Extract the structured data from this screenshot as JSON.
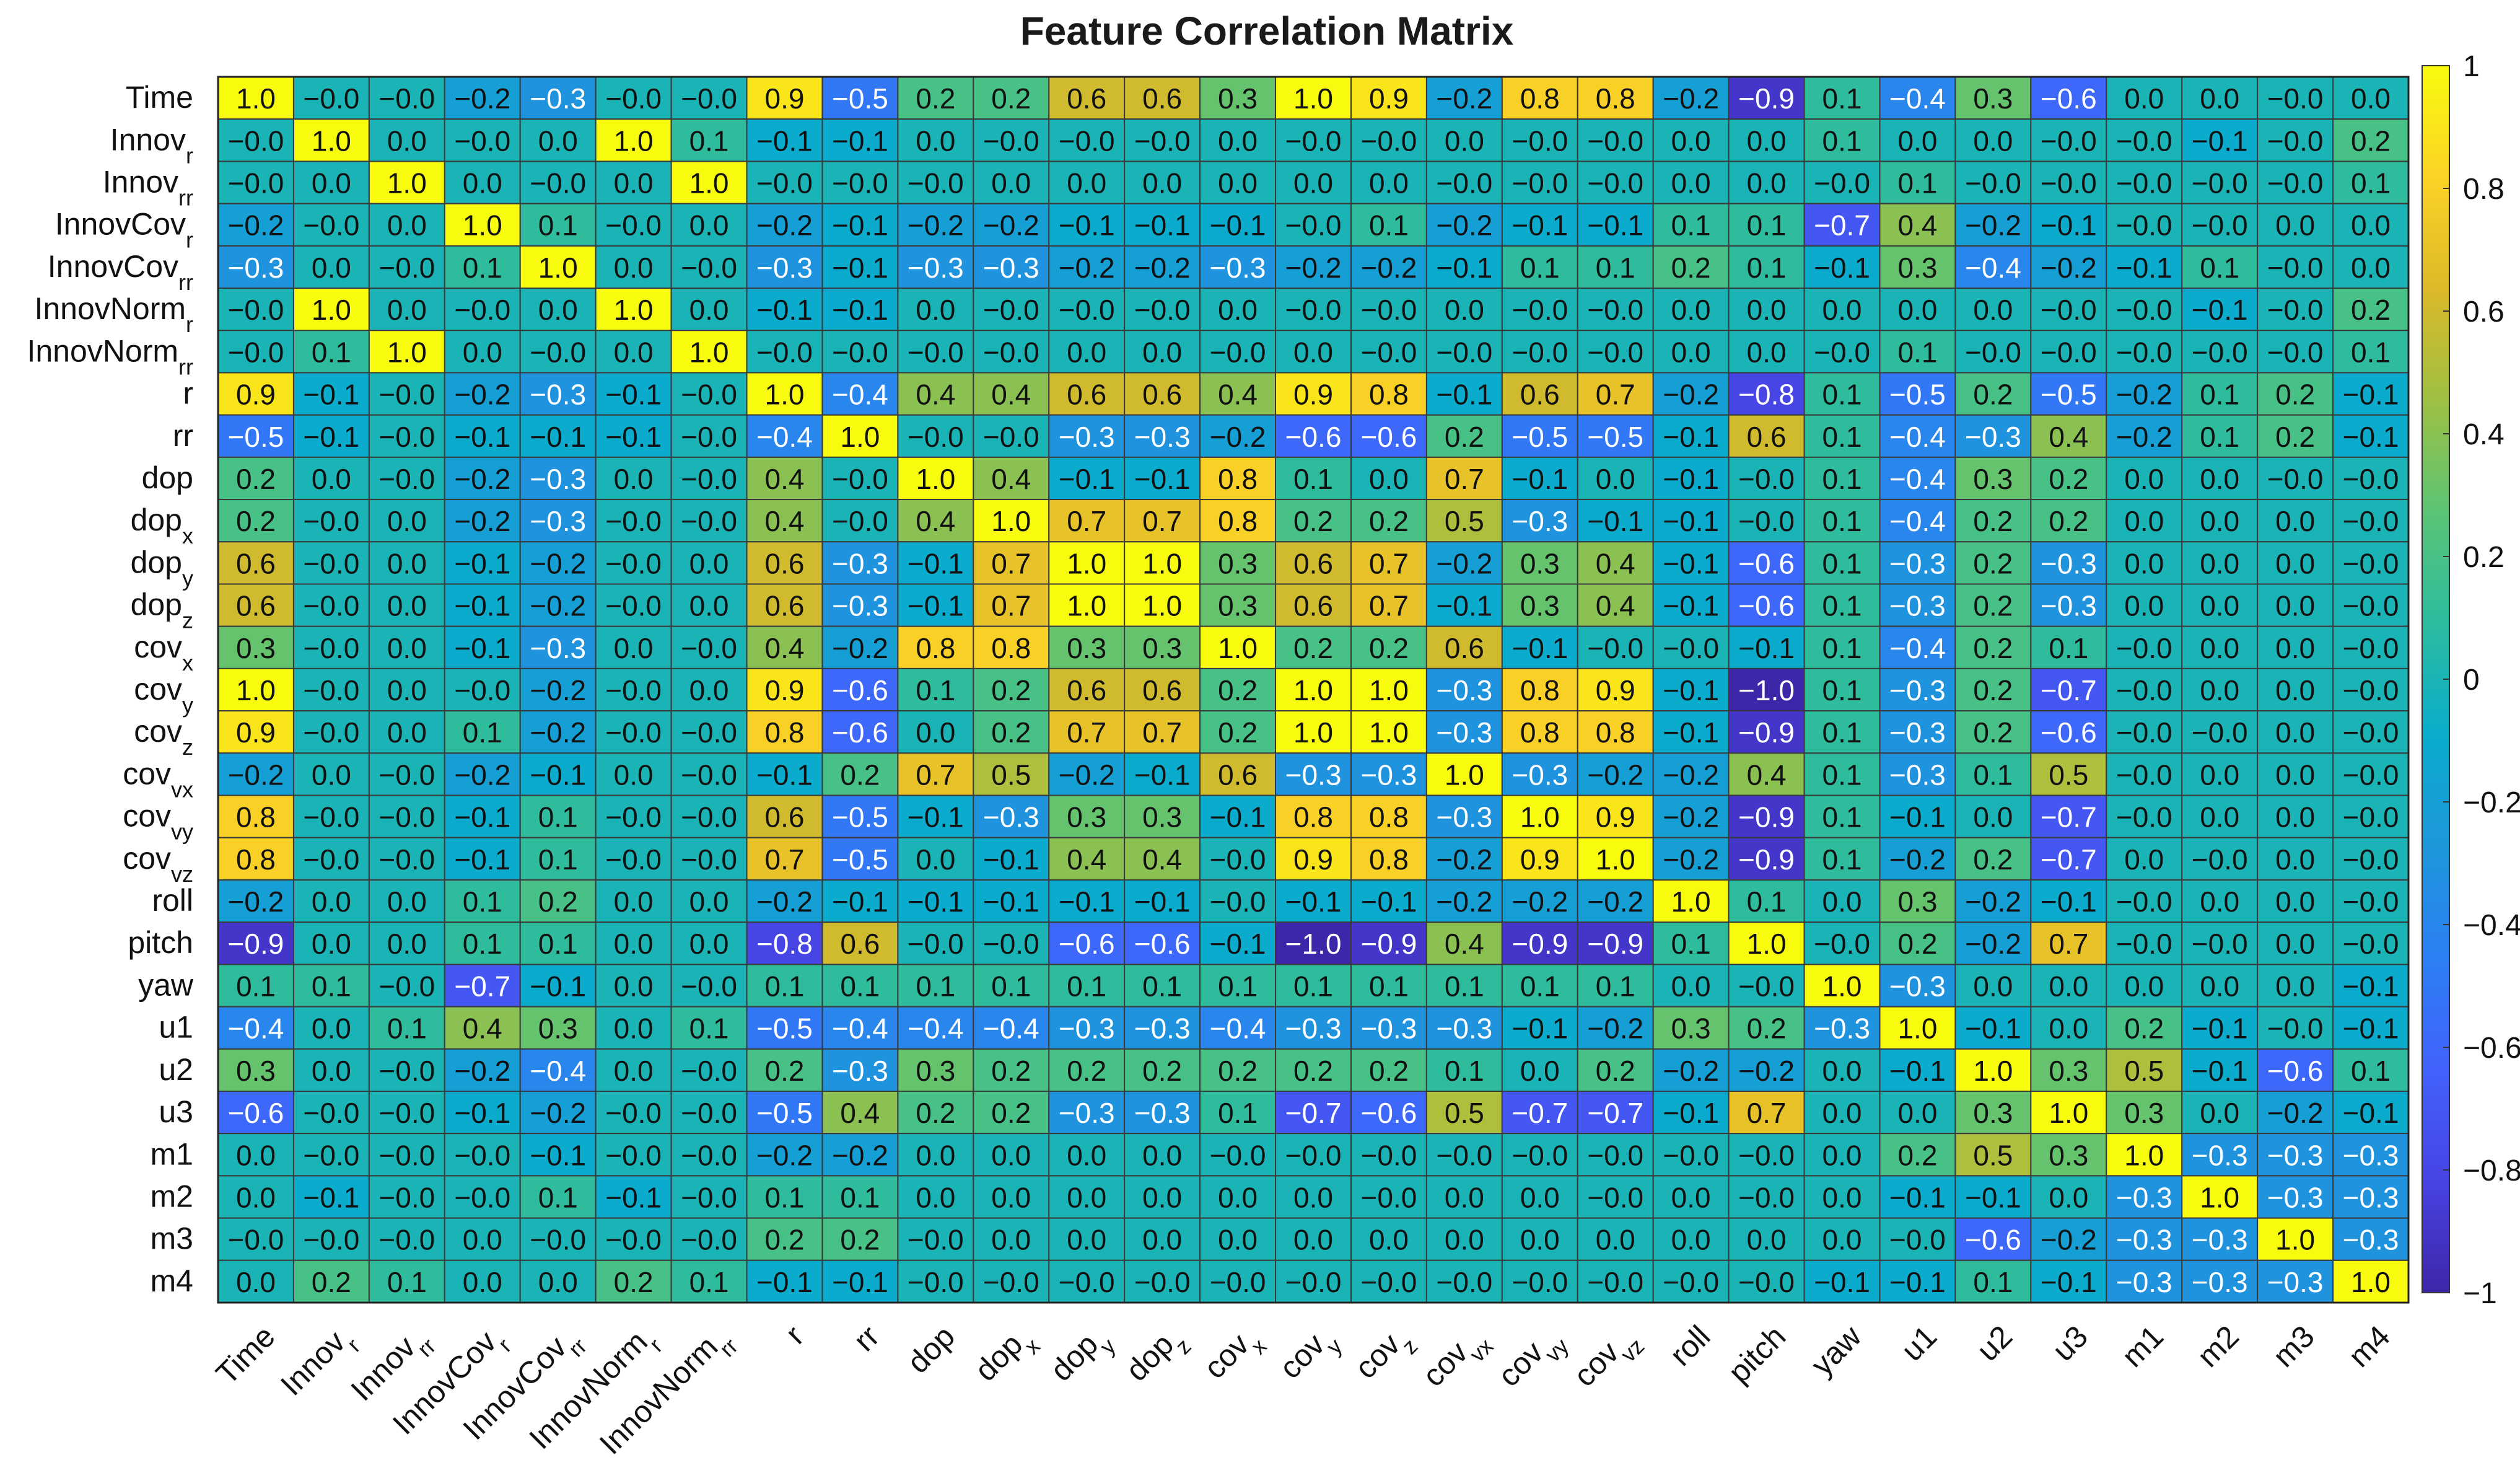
{
  "chart_data": {
    "type": "heatmap",
    "title": "Feature Correlation Matrix",
    "labels": [
      {
        "base": "Time",
        "sub": ""
      },
      {
        "base": "Innov",
        "sub": "r"
      },
      {
        "base": "Innov",
        "sub": "rr"
      },
      {
        "base": "InnovCov",
        "sub": "r"
      },
      {
        "base": "InnovCov",
        "sub": "rr"
      },
      {
        "base": "InnovNorm",
        "sub": "r"
      },
      {
        "base": "InnovNorm",
        "sub": "rr"
      },
      {
        "base": "r",
        "sub": ""
      },
      {
        "base": "rr",
        "sub": ""
      },
      {
        "base": "dop",
        "sub": ""
      },
      {
        "base": "dop",
        "sub": "x"
      },
      {
        "base": "dop",
        "sub": "y"
      },
      {
        "base": "dop",
        "sub": "z"
      },
      {
        "base": "cov",
        "sub": "x"
      },
      {
        "base": "cov",
        "sub": "y"
      },
      {
        "base": "cov",
        "sub": "z"
      },
      {
        "base": "cov",
        "sub": "vx"
      },
      {
        "base": "cov",
        "sub": "vy"
      },
      {
        "base": "cov",
        "sub": "vz"
      },
      {
        "base": "roll",
        "sub": ""
      },
      {
        "base": "pitch",
        "sub": ""
      },
      {
        "base": "yaw",
        "sub": ""
      },
      {
        "base": "u1",
        "sub": ""
      },
      {
        "base": "u2",
        "sub": ""
      },
      {
        "base": "u3",
        "sub": ""
      },
      {
        "base": "m1",
        "sub": ""
      },
      {
        "base": "m2",
        "sub": ""
      },
      {
        "base": "m3",
        "sub": ""
      },
      {
        "base": "m4",
        "sub": ""
      }
    ],
    "matrix": [
      [
        "1.0",
        "-0.0",
        "-0.0",
        "-0.2",
        "-0.3",
        "-0.0",
        "-0.0",
        "0.9",
        "-0.5",
        "0.2",
        "0.2",
        "0.6",
        "0.6",
        "0.3",
        "1.0",
        "0.9",
        "-0.2",
        "0.8",
        "0.8",
        "-0.2",
        "-0.9",
        "0.1",
        "-0.4",
        "0.3",
        "-0.6",
        "0.0",
        "0.0",
        "-0.0",
        "0.0"
      ],
      [
        "-0.0",
        "1.0",
        "0.0",
        "-0.0",
        "0.0",
        "1.0",
        "0.1",
        "-0.1",
        "-0.1",
        "0.0",
        "-0.0",
        "-0.0",
        "-0.0",
        "0.0",
        "-0.0",
        "-0.0",
        "0.0",
        "-0.0",
        "-0.0",
        "0.0",
        "0.0",
        "0.1",
        "0.0",
        "0.0",
        "-0.0",
        "-0.0",
        "-0.1",
        "-0.0",
        "0.2"
      ],
      [
        "-0.0",
        "0.0",
        "1.0",
        "0.0",
        "-0.0",
        "0.0",
        "1.0",
        "-0.0",
        "-0.0",
        "-0.0",
        "0.0",
        "0.0",
        "0.0",
        "0.0",
        "0.0",
        "0.0",
        "-0.0",
        "-0.0",
        "-0.0",
        "0.0",
        "0.0",
        "-0.0",
        "0.1",
        "-0.0",
        "-0.0",
        "-0.0",
        "-0.0",
        "-0.0",
        "0.1"
      ],
      [
        "-0.2",
        "-0.0",
        "0.0",
        "1.0",
        "0.1",
        "-0.0",
        "0.0",
        "-0.2",
        "-0.1",
        "-0.2",
        "-0.2",
        "-0.1",
        "-0.1",
        "-0.1",
        "-0.0",
        "0.1",
        "-0.2",
        "-0.1",
        "-0.1",
        "0.1",
        "0.1",
        "-0.7",
        "0.4",
        "-0.2",
        "-0.1",
        "-0.0",
        "-0.0",
        "0.0",
        "0.0"
      ],
      [
        "-0.3",
        "0.0",
        "-0.0",
        "0.1",
        "1.0",
        "0.0",
        "-0.0",
        "-0.3",
        "-0.1",
        "-0.3",
        "-0.3",
        "-0.2",
        "-0.2",
        "-0.3",
        "-0.2",
        "-0.2",
        "-0.1",
        "0.1",
        "0.1",
        "0.2",
        "0.1",
        "-0.1",
        "0.3",
        "-0.4",
        "-0.2",
        "-0.1",
        "0.1",
        "-0.0",
        "0.0"
      ],
      [
        "-0.0",
        "1.0",
        "0.0",
        "-0.0",
        "0.0",
        "1.0",
        "0.0",
        "-0.1",
        "-0.1",
        "0.0",
        "-0.0",
        "-0.0",
        "-0.0",
        "0.0",
        "-0.0",
        "-0.0",
        "0.0",
        "-0.0",
        "-0.0",
        "0.0",
        "0.0",
        "0.0",
        "0.0",
        "0.0",
        "-0.0",
        "-0.0",
        "-0.1",
        "-0.0",
        "0.2"
      ],
      [
        "-0.0",
        "0.1",
        "1.0",
        "0.0",
        "-0.0",
        "0.0",
        "1.0",
        "-0.0",
        "-0.0",
        "-0.0",
        "-0.0",
        "0.0",
        "0.0",
        "-0.0",
        "0.0",
        "-0.0",
        "-0.0",
        "-0.0",
        "-0.0",
        "0.0",
        "0.0",
        "-0.0",
        "0.1",
        "-0.0",
        "-0.0",
        "-0.0",
        "-0.0",
        "-0.0",
        "0.1"
      ],
      [
        "0.9",
        "-0.1",
        "-0.0",
        "-0.2",
        "-0.3",
        "-0.1",
        "-0.0",
        "1.0",
        "-0.4",
        "0.4",
        "0.4",
        "0.6",
        "0.6",
        "0.4",
        "0.9",
        "0.8",
        "-0.1",
        "0.6",
        "0.7",
        "-0.2",
        "-0.8",
        "0.1",
        "-0.5",
        "0.2",
        "-0.5",
        "-0.2",
        "0.1",
        "0.2",
        "-0.1"
      ],
      [
        "-0.5",
        "-0.1",
        "-0.0",
        "-0.1",
        "-0.1",
        "-0.1",
        "-0.0",
        "-0.4",
        "1.0",
        "-0.0",
        "-0.0",
        "-0.3",
        "-0.3",
        "-0.2",
        "-0.6",
        "-0.6",
        "0.2",
        "-0.5",
        "-0.5",
        "-0.1",
        "0.6",
        "0.1",
        "-0.4",
        "-0.3",
        "0.4",
        "-0.2",
        "0.1",
        "0.2",
        "-0.1"
      ],
      [
        "0.2",
        "0.0",
        "-0.0",
        "-0.2",
        "-0.3",
        "0.0",
        "-0.0",
        "0.4",
        "-0.0",
        "1.0",
        "0.4",
        "-0.1",
        "-0.1",
        "0.8",
        "0.1",
        "0.0",
        "0.7",
        "-0.1",
        "0.0",
        "-0.1",
        "-0.0",
        "0.1",
        "-0.4",
        "0.3",
        "0.2",
        "0.0",
        "0.0",
        "-0.0",
        "-0.0"
      ],
      [
        "0.2",
        "-0.0",
        "0.0",
        "-0.2",
        "-0.3",
        "-0.0",
        "-0.0",
        "0.4",
        "-0.0",
        "0.4",
        "1.0",
        "0.7",
        "0.7",
        "0.8",
        "0.2",
        "0.2",
        "0.5",
        "-0.3",
        "-0.1",
        "-0.1",
        "-0.0",
        "0.1",
        "-0.4",
        "0.2",
        "0.2",
        "0.0",
        "0.0",
        "0.0",
        "-0.0"
      ],
      [
        "0.6",
        "-0.0",
        "0.0",
        "-0.1",
        "-0.2",
        "-0.0",
        "0.0",
        "0.6",
        "-0.3",
        "-0.1",
        "0.7",
        "1.0",
        "1.0",
        "0.3",
        "0.6",
        "0.7",
        "-0.2",
        "0.3",
        "0.4",
        "-0.1",
        "-0.6",
        "0.1",
        "-0.3",
        "0.2",
        "-0.3",
        "0.0",
        "0.0",
        "0.0",
        "-0.0"
      ],
      [
        "0.6",
        "-0.0",
        "0.0",
        "-0.1",
        "-0.2",
        "-0.0",
        "0.0",
        "0.6",
        "-0.3",
        "-0.1",
        "0.7",
        "1.0",
        "1.0",
        "0.3",
        "0.6",
        "0.7",
        "-0.1",
        "0.3",
        "0.4",
        "-0.1",
        "-0.6",
        "0.1",
        "-0.3",
        "0.2",
        "-0.3",
        "0.0",
        "0.0",
        "0.0",
        "-0.0"
      ],
      [
        "0.3",
        "-0.0",
        "0.0",
        "-0.1",
        "-0.3",
        "0.0",
        "-0.0",
        "0.4",
        "-0.2",
        "0.8",
        "0.8",
        "0.3",
        "0.3",
        "1.0",
        "0.2",
        "0.2",
        "0.6",
        "-0.1",
        "-0.0",
        "-0.0",
        "-0.1",
        "0.1",
        "-0.4",
        "0.2",
        "0.1",
        "-0.0",
        "0.0",
        "0.0",
        "-0.0"
      ],
      [
        "1.0",
        "-0.0",
        "0.0",
        "-0.0",
        "-0.2",
        "-0.0",
        "0.0",
        "0.9",
        "-0.6",
        "0.1",
        "0.2",
        "0.6",
        "0.6",
        "0.2",
        "1.0",
        "1.0",
        "-0.3",
        "0.8",
        "0.9",
        "-0.1",
        "-1.0",
        "0.1",
        "-0.3",
        "0.2",
        "-0.7",
        "-0.0",
        "0.0",
        "0.0",
        "-0.0"
      ],
      [
        "0.9",
        "-0.0",
        "0.0",
        "0.1",
        "-0.2",
        "-0.0",
        "-0.0",
        "0.8",
        "-0.6",
        "0.0",
        "0.2",
        "0.7",
        "0.7",
        "0.2",
        "1.0",
        "1.0",
        "-0.3",
        "0.8",
        "0.8",
        "-0.1",
        "-0.9",
        "0.1",
        "-0.3",
        "0.2",
        "-0.6",
        "-0.0",
        "-0.0",
        "0.0",
        "-0.0"
      ],
      [
        "-0.2",
        "0.0",
        "-0.0",
        "-0.2",
        "-0.1",
        "0.0",
        "-0.0",
        "-0.1",
        "0.2",
        "0.7",
        "0.5",
        "-0.2",
        "-0.1",
        "0.6",
        "-0.3",
        "-0.3",
        "1.0",
        "-0.3",
        "-0.2",
        "-0.2",
        "0.4",
        "0.1",
        "-0.3",
        "0.1",
        "0.5",
        "-0.0",
        "0.0",
        "0.0",
        "-0.0"
      ],
      [
        "0.8",
        "-0.0",
        "-0.0",
        "-0.1",
        "0.1",
        "-0.0",
        "-0.0",
        "0.6",
        "-0.5",
        "-0.1",
        "-0.3",
        "0.3",
        "0.3",
        "-0.1",
        "0.8",
        "0.8",
        "-0.3",
        "1.0",
        "0.9",
        "-0.2",
        "-0.9",
        "0.1",
        "-0.1",
        "0.0",
        "-0.7",
        "-0.0",
        "0.0",
        "0.0",
        "-0.0"
      ],
      [
        "0.8",
        "-0.0",
        "-0.0",
        "-0.1",
        "0.1",
        "-0.0",
        "-0.0",
        "0.7",
        "-0.5",
        "0.0",
        "-0.1",
        "0.4",
        "0.4",
        "-0.0",
        "0.9",
        "0.8",
        "-0.2",
        "0.9",
        "1.0",
        "-0.2",
        "-0.9",
        "0.1",
        "-0.2",
        "0.2",
        "-0.7",
        "0.0",
        "-0.0",
        "0.0",
        "-0.0"
      ],
      [
        "-0.2",
        "0.0",
        "0.0",
        "0.1",
        "0.2",
        "0.0",
        "0.0",
        "-0.2",
        "-0.1",
        "-0.1",
        "-0.1",
        "-0.1",
        "-0.1",
        "-0.0",
        "-0.1",
        "-0.1",
        "-0.2",
        "-0.2",
        "-0.2",
        "1.0",
        "0.1",
        "0.0",
        "0.3",
        "-0.2",
        "-0.1",
        "-0.0",
        "0.0",
        "0.0",
        "-0.0"
      ],
      [
        "-0.9",
        "0.0",
        "0.0",
        "0.1",
        "0.1",
        "0.0",
        "0.0",
        "-0.8",
        "0.6",
        "-0.0",
        "-0.0",
        "-0.6",
        "-0.6",
        "-0.1",
        "-1.0",
        "-0.9",
        "0.4",
        "-0.9",
        "-0.9",
        "0.1",
        "1.0",
        "-0.0",
        "0.2",
        "-0.2",
        "0.7",
        "-0.0",
        "-0.0",
        "0.0",
        "-0.0"
      ],
      [
        "0.1",
        "0.1",
        "-0.0",
        "-0.7",
        "-0.1",
        "0.0",
        "-0.0",
        "0.1",
        "0.1",
        "0.1",
        "0.1",
        "0.1",
        "0.1",
        "0.1",
        "0.1",
        "0.1",
        "0.1",
        "0.1",
        "0.1",
        "0.0",
        "-0.0",
        "1.0",
        "-0.3",
        "0.0",
        "0.0",
        "0.0",
        "0.0",
        "0.0",
        "-0.1"
      ],
      [
        "-0.4",
        "0.0",
        "0.1",
        "0.4",
        "0.3",
        "0.0",
        "0.1",
        "-0.5",
        "-0.4",
        "-0.4",
        "-0.4",
        "-0.3",
        "-0.3",
        "-0.4",
        "-0.3",
        "-0.3",
        "-0.3",
        "-0.1",
        "-0.2",
        "0.3",
        "0.2",
        "-0.3",
        "1.0",
        "-0.1",
        "0.0",
        "0.2",
        "-0.1",
        "-0.0",
        "-0.1"
      ],
      [
        "0.3",
        "0.0",
        "-0.0",
        "-0.2",
        "-0.4",
        "0.0",
        "-0.0",
        "0.2",
        "-0.3",
        "0.3",
        "0.2",
        "0.2",
        "0.2",
        "0.2",
        "0.2",
        "0.2",
        "0.1",
        "0.0",
        "0.2",
        "-0.2",
        "-0.2",
        "0.0",
        "-0.1",
        "1.0",
        "0.3",
        "0.5",
        "-0.1",
        "-0.6",
        "0.1"
      ],
      [
        "-0.6",
        "-0.0",
        "-0.0",
        "-0.1",
        "-0.2",
        "-0.0",
        "-0.0",
        "-0.5",
        "0.4",
        "0.2",
        "0.2",
        "-0.3",
        "-0.3",
        "0.1",
        "-0.7",
        "-0.6",
        "0.5",
        "-0.7",
        "-0.7",
        "-0.1",
        "0.7",
        "0.0",
        "0.0",
        "0.3",
        "1.0",
        "0.3",
        "0.0",
        "-0.2",
        "-0.1"
      ],
      [
        "0.0",
        "-0.0",
        "-0.0",
        "-0.0",
        "-0.1",
        "-0.0",
        "-0.0",
        "-0.2",
        "-0.2",
        "0.0",
        "0.0",
        "0.0",
        "0.0",
        "-0.0",
        "-0.0",
        "-0.0",
        "-0.0",
        "-0.0",
        "-0.0",
        "-0.0",
        "-0.0",
        "0.0",
        "0.2",
        "0.5",
        "0.3",
        "1.0",
        "-0.3",
        "-0.3",
        "-0.3"
      ],
      [
        "0.0",
        "-0.1",
        "-0.0",
        "-0.0",
        "0.1",
        "-0.1",
        "-0.0",
        "0.1",
        "0.1",
        "0.0",
        "0.0",
        "0.0",
        "0.0",
        "0.0",
        "0.0",
        "-0.0",
        "0.0",
        "0.0",
        "-0.0",
        "0.0",
        "-0.0",
        "0.0",
        "-0.1",
        "-0.1",
        "0.0",
        "-0.3",
        "1.0",
        "-0.3",
        "-0.3"
      ],
      [
        "-0.0",
        "-0.0",
        "-0.0",
        "0.0",
        "-0.0",
        "-0.0",
        "-0.0",
        "0.2",
        "0.2",
        "-0.0",
        "0.0",
        "0.0",
        "0.0",
        "0.0",
        "0.0",
        "0.0",
        "0.0",
        "0.0",
        "0.0",
        "0.0",
        "0.0",
        "0.0",
        "-0.0",
        "-0.6",
        "-0.2",
        "-0.3",
        "-0.3",
        "1.0",
        "-0.3"
      ],
      [
        "0.0",
        "0.2",
        "0.1",
        "0.0",
        "0.0",
        "0.2",
        "0.1",
        "-0.1",
        "-0.1",
        "-0.0",
        "-0.0",
        "-0.0",
        "-0.0",
        "-0.0",
        "-0.0",
        "-0.0",
        "-0.0",
        "-0.0",
        "-0.0",
        "-0.0",
        "-0.0",
        "-0.1",
        "-0.1",
        "0.1",
        "-0.1",
        "-0.3",
        "-0.3",
        "-0.3",
        "1.0"
      ]
    ],
    "colorbar": {
      "range": [
        -1,
        1
      ],
      "ticks": [
        {
          "value": 1,
          "label": "1"
        },
        {
          "value": 0.8,
          "label": "0.8"
        },
        {
          "value": 0.6,
          "label": "0.6"
        },
        {
          "value": 0.4,
          "label": "0.4"
        },
        {
          "value": 0.2,
          "label": "0.2"
        },
        {
          "value": 0,
          "label": "0"
        },
        {
          "value": -0.2,
          "label": "−0.2"
        },
        {
          "value": -0.4,
          "label": "−0.4"
        },
        {
          "value": -0.6,
          "label": "−0.6"
        },
        {
          "value": -0.8,
          "label": "−0.8"
        },
        {
          "value": -1,
          "label": "−1"
        }
      ]
    },
    "colormap": "parula",
    "colors": {
      "parula": [
        "#3e26a8",
        "#4743e3",
        "#4262fb",
        "#2c7ff4",
        "#1e97db",
        "#0aaccc",
        "#2cbc9f",
        "#5bc475",
        "#9ec043",
        "#dcb929",
        "#fbd326",
        "#f9fb0e"
      ],
      "grid": "#3a3a3a"
    }
  }
}
